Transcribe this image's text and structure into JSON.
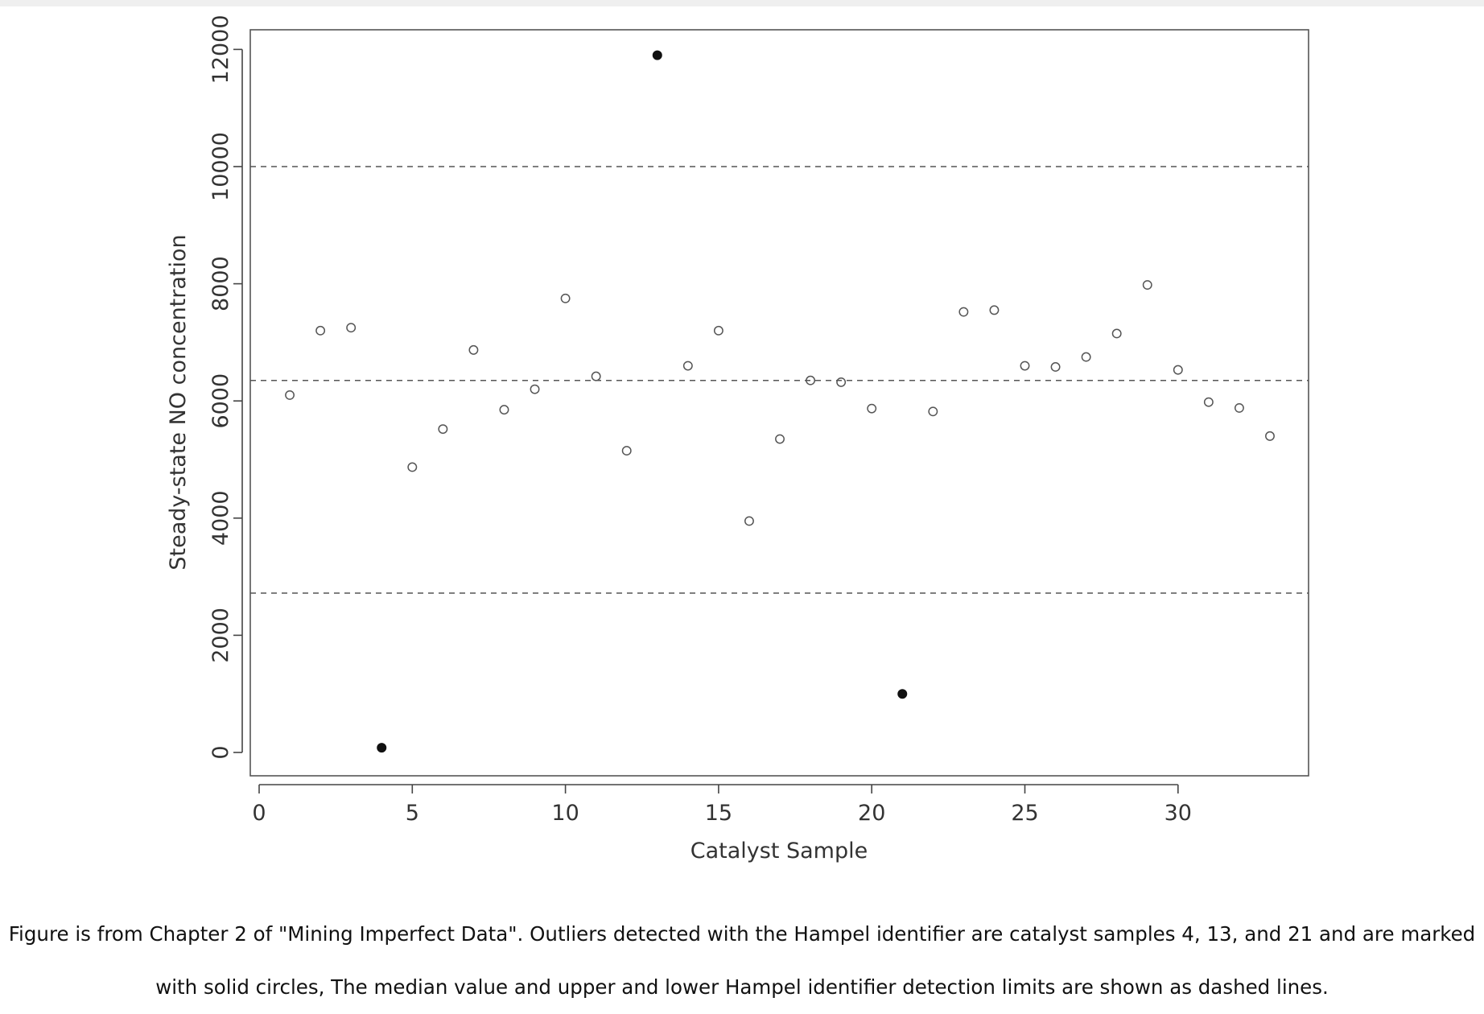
{
  "chart_data": {
    "type": "scatter",
    "xlabel": "Catalyst Sample",
    "ylabel": "Steady-state NO concentration",
    "xlim": [
      0,
      34
    ],
    "ylim": [
      -400,
      12400
    ],
    "x_ticks": [
      "0",
      "5",
      "10",
      "15",
      "20",
      "25",
      "30"
    ],
    "y_ticks": [
      "0",
      "2000",
      "4000",
      "6000",
      "8000",
      "10000",
      "12000"
    ],
    "grid": false,
    "reference_lines": [
      {
        "y": 10000,
        "style": "dashed"
      },
      {
        "y": 6350,
        "style": "dashed"
      },
      {
        "y": 2720,
        "style": "dashed"
      }
    ],
    "points": [
      {
        "x": 1,
        "y": 6100,
        "outlier": false
      },
      {
        "x": 2,
        "y": 7200,
        "outlier": false
      },
      {
        "x": 3,
        "y": 7250,
        "outlier": false
      },
      {
        "x": 4,
        "y": 80,
        "outlier": true
      },
      {
        "x": 5,
        "y": 4870,
        "outlier": false
      },
      {
        "x": 6,
        "y": 5520,
        "outlier": false
      },
      {
        "x": 7,
        "y": 6870,
        "outlier": false
      },
      {
        "x": 8,
        "y": 5850,
        "outlier": false
      },
      {
        "x": 9,
        "y": 6200,
        "outlier": false
      },
      {
        "x": 10,
        "y": 7750,
        "outlier": false
      },
      {
        "x": 11,
        "y": 6420,
        "outlier": false
      },
      {
        "x": 12,
        "y": 5150,
        "outlier": false
      },
      {
        "x": 13,
        "y": 11900,
        "outlier": true
      },
      {
        "x": 14,
        "y": 6600,
        "outlier": false
      },
      {
        "x": 15,
        "y": 7200,
        "outlier": false
      },
      {
        "x": 16,
        "y": 3950,
        "outlier": false
      },
      {
        "x": 17,
        "y": 5350,
        "outlier": false
      },
      {
        "x": 18,
        "y": 6350,
        "outlier": false
      },
      {
        "x": 19,
        "y": 6320,
        "outlier": false
      },
      {
        "x": 20,
        "y": 5870,
        "outlier": false
      },
      {
        "x": 21,
        "y": 1000,
        "outlier": true
      },
      {
        "x": 22,
        "y": 5820,
        "outlier": false
      },
      {
        "x": 23,
        "y": 7520,
        "outlier": false
      },
      {
        "x": 24,
        "y": 7550,
        "outlier": false
      },
      {
        "x": 25,
        "y": 6600,
        "outlier": false
      },
      {
        "x": 26,
        "y": 6580,
        "outlier": false
      },
      {
        "x": 27,
        "y": 6750,
        "outlier": false
      },
      {
        "x": 28,
        "y": 7150,
        "outlier": false
      },
      {
        "x": 29,
        "y": 7980,
        "outlier": false
      },
      {
        "x": 30,
        "y": 6530,
        "outlier": false
      },
      {
        "x": 31,
        "y": 5980,
        "outlier": false
      },
      {
        "x": 32,
        "y": 5880,
        "outlier": false
      },
      {
        "x": 33,
        "y": 5400,
        "outlier": false
      }
    ]
  },
  "caption": {
    "line1": "Figure is from Chapter 2 of \"Mining Imperfect Data\". Outliers detected with the Hampel identifier are catalyst samples 4, 13, and 21 and are marked",
    "line2": "with solid circles, The median value and upper and lower Hampel identifier detection limits are shown as dashed lines."
  }
}
